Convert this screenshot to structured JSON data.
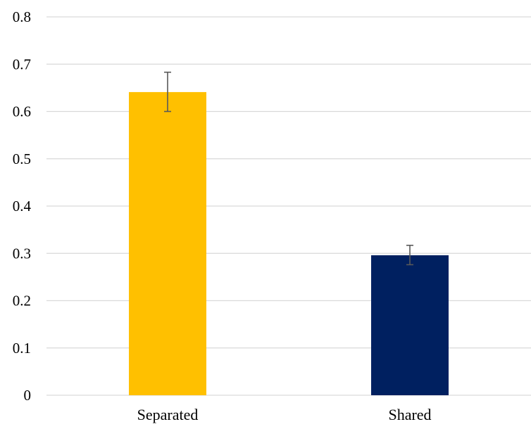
{
  "chart_data": {
    "type": "bar",
    "title": "",
    "xlabel": "",
    "ylabel": "",
    "categories": [
      "Separated",
      "Shared"
    ],
    "values": [
      0.641,
      0.296
    ],
    "error_low": [
      0.6,
      0.276
    ],
    "error_high": [
      0.683,
      0.317
    ],
    "colors": [
      "#FFC000",
      "#002060"
    ],
    "ylim": [
      0,
      0.8
    ],
    "yticks": [
      0,
      0.1,
      0.2,
      0.3,
      0.4,
      0.5,
      0.6,
      0.7,
      0.8
    ],
    "ytick_labels": [
      "0",
      "0.1",
      "0.2",
      "0.3",
      "0.4",
      "0.5",
      "0.6",
      "0.7",
      "0.8"
    ],
    "grid": true,
    "legend": "none",
    "gridline_color": "#D9D9D9",
    "errorbar_color": "#595959"
  }
}
